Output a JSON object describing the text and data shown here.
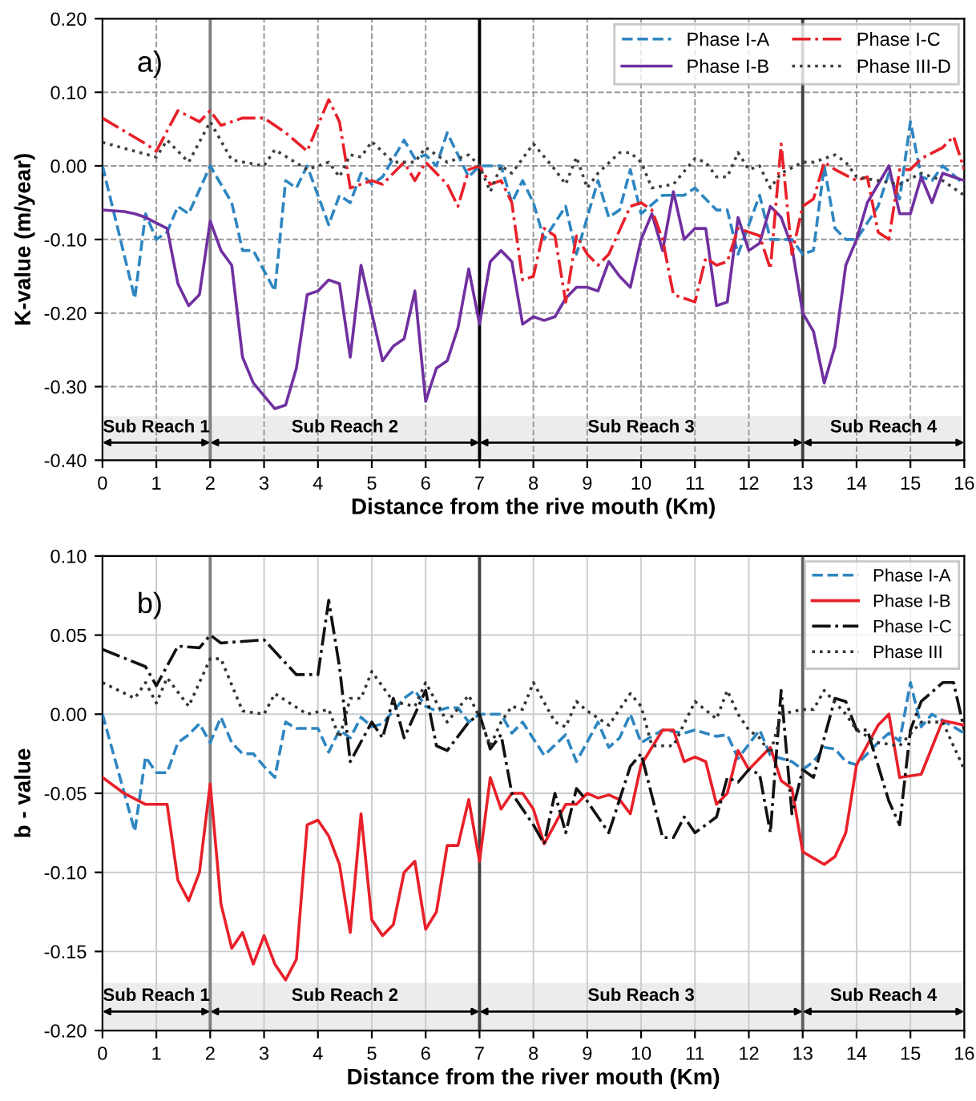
{
  "chart_data": [
    {
      "type": "line",
      "xlabel": "Distance from the rive mouth (Km)",
      "ylabel": "K-value (m/year)",
      "xlim": [
        0,
        16
      ],
      "xticks": [
        0,
        1,
        2,
        3,
        4,
        5,
        6,
        7,
        8,
        9,
        10,
        11,
        12,
        13,
        14,
        15,
        16
      ],
      "ylim": [
        -0.4,
        0.2
      ],
      "yticks": [
        {
          "value": -0.4,
          "label": "-0.40"
        },
        {
          "value": -0.3,
          "label": "-0.30"
        },
        {
          "value": -0.2,
          "label": "-0.20"
        },
        {
          "value": -0.1,
          "label": "-0.10"
        },
        {
          "value": 0,
          "label": "0.00"
        },
        {
          "value": 0.1,
          "label": "0.10"
        },
        {
          "value": 0.2,
          "label": "0.20"
        }
      ],
      "grid": true,
      "legend": "top right",
      "ref_lines": [
        {
          "axis": "x",
          "value": 2,
          "color": "#808080"
        },
        {
          "axis": "x",
          "value": 7,
          "color": "#000000"
        },
        {
          "axis": "x",
          "value": 13,
          "color": "#404040"
        }
      ],
      "annotations": [
        "a)"
      ],
      "bands": [
        {
          "axis": "x",
          "from": 0,
          "to": 2,
          "label": "Sub Reach 1",
          "color": "#ececec"
        },
        {
          "axis": "x",
          "from": 2,
          "to": 7,
          "label": "Sub Reach 2",
          "color": "#ececec"
        },
        {
          "axis": "x",
          "from": 7,
          "to": 13,
          "label": "Sub Reach 3",
          "color": "#ececec"
        },
        {
          "axis": "x",
          "from": 13,
          "to": 16,
          "label": "Sub Reach 4",
          "color": "#ececec"
        }
      ],
      "series": [
        {
          "name": "Phase I-A",
          "color": "#2e86c1",
          "line_style": "dashed",
          "x": [
            0,
            0.6,
            0.8,
            1,
            1.2,
            1.4,
            1.6,
            2,
            2.4,
            2.6,
            2.8,
            3.2,
            3.4,
            3.6,
            3.8,
            4.2,
            4.4,
            4.6,
            4.8,
            5,
            5.2,
            5.6,
            5.8,
            6,
            6.2,
            6.4,
            6.8,
            7,
            7.4,
            7.6,
            7.8,
            8,
            8.2,
            8.6,
            8.8,
            9.2,
            9.4,
            9.6,
            9.8,
            10,
            10.4,
            10.8,
            11,
            11.4,
            11.6,
            11.8,
            12.2,
            12.4,
            12.8,
            13,
            13.2,
            13.4,
            13.6,
            13.8,
            14,
            14.4,
            14.6,
            14.8,
            15,
            15.2,
            15.4,
            15.6,
            16
          ],
          "values": [
            0,
            -0.18,
            -0.065,
            -0.1,
            -0.09,
            -0.055,
            -0.065,
            0,
            -0.05,
            -0.115,
            -0.115,
            -0.17,
            -0.02,
            -0.03,
            0,
            -0.08,
            -0.04,
            -0.05,
            -0.01,
            -0.025,
            -0.015,
            0.035,
            0.01,
            0.015,
            0,
            0.045,
            -0.015,
            0,
            0,
            -0.05,
            -0.02,
            -0.05,
            -0.1,
            -0.055,
            -0.12,
            -0.02,
            -0.07,
            -0.06,
            -0.005,
            -0.065,
            -0.04,
            -0.04,
            -0.03,
            -0.06,
            -0.06,
            -0.12,
            -0.04,
            -0.1,
            -0.1,
            -0.12,
            -0.115,
            0,
            -0.085,
            -0.1,
            -0.1,
            -0.055,
            -0.01,
            -0.045,
            0.06,
            -0.015,
            -0.02,
            0,
            -0.025
          ]
        },
        {
          "name": "Phase I-B",
          "color": "#7030a0",
          "line_style": "solid",
          "x": [
            0,
            0.4,
            0.6,
            0.8,
            1.2,
            1.4,
            1.6,
            1.8,
            2,
            2.2,
            2.4,
            2.6,
            2.8,
            3.2,
            3.4,
            3.6,
            3.8,
            4,
            4.2,
            4.4,
            4.6,
            4.8,
            5,
            5.2,
            5.4,
            5.6,
            5.8,
            6,
            6.2,
            6.4,
            6.6,
            6.8,
            7,
            7.2,
            7.4,
            7.6,
            7.8,
            8,
            8.2,
            8.4,
            8.6,
            8.8,
            9,
            9.2,
            9.4,
            9.6,
            9.8,
            10,
            10.2,
            10.4,
            10.6,
            10.8,
            11,
            11.2,
            11.4,
            11.6,
            11.8,
            12,
            12.2,
            12.4,
            12.6,
            12.8,
            13,
            13.2,
            13.4,
            13.6,
            13.8,
            14,
            14.2,
            14.4,
            14.6,
            14.8,
            15,
            15.2,
            15.4,
            15.6,
            16
          ],
          "values": [
            -0.06,
            -0.062,
            -0.065,
            -0.07,
            -0.085,
            -0.16,
            -0.19,
            -0.175,
            -0.075,
            -0.115,
            -0.135,
            -0.26,
            -0.295,
            -0.33,
            -0.325,
            -0.275,
            -0.175,
            -0.17,
            -0.155,
            -0.16,
            -0.26,
            -0.135,
            -0.2,
            -0.265,
            -0.245,
            -0.235,
            -0.17,
            -0.32,
            -0.275,
            -0.265,
            -0.22,
            -0.14,
            -0.215,
            -0.13,
            -0.115,
            -0.13,
            -0.215,
            -0.205,
            -0.21,
            -0.205,
            -0.18,
            -0.165,
            -0.165,
            -0.17,
            -0.13,
            -0.15,
            -0.165,
            -0.1,
            -0.065,
            -0.115,
            -0.035,
            -0.1,
            -0.085,
            -0.085,
            -0.19,
            -0.185,
            -0.07,
            -0.115,
            -0.105,
            -0.055,
            -0.07,
            -0.11,
            -0.2,
            -0.225,
            -0.295,
            -0.245,
            -0.135,
            -0.1,
            -0.05,
            -0.025,
            0,
            -0.065,
            -0.065,
            -0.015,
            -0.05,
            -0.01,
            -0.02
          ]
        },
        {
          "name": "Phase I-C",
          "color": "#e8202a",
          "line_style": "dashdot",
          "x": [
            0,
            0.8,
            1,
            1.4,
            1.8,
            2,
            2.2,
            2.6,
            3,
            3.4,
            3.8,
            4.2,
            4.4,
            4.6,
            5,
            5.2,
            5.6,
            5.8,
            6,
            6.2,
            6.4,
            6.6,
            6.8,
            7,
            7.2,
            7.4,
            7.6,
            7.8,
            8,
            8.2,
            8.4,
            8.6,
            8.8,
            9,
            9.2,
            9.4,
            9.8,
            10,
            10.2,
            10.4,
            10.6,
            10.8,
            11,
            11.2,
            11.4,
            11.6,
            11.8,
            12,
            12.2,
            12.4,
            12.6,
            12.8,
            13,
            13.2,
            13.4,
            13.6,
            14,
            14.2,
            14.4,
            14.6,
            14.8,
            15,
            15.2,
            15.6,
            15.8,
            16
          ],
          "values": [
            0.065,
            0.03,
            0.02,
            0.075,
            0.06,
            0.075,
            0.055,
            0.065,
            0.065,
            0.045,
            0.02,
            0.09,
            0.06,
            -0.03,
            -0.02,
            -0.025,
            0.005,
            -0.02,
            0.005,
            -0.01,
            -0.025,
            -0.055,
            -0.005,
            0,
            -0.025,
            -0.02,
            -0.05,
            -0.155,
            -0.15,
            -0.085,
            -0.095,
            -0.185,
            -0.095,
            -0.12,
            -0.135,
            -0.12,
            -0.055,
            -0.05,
            -0.06,
            -0.1,
            -0.175,
            -0.18,
            -0.185,
            -0.125,
            -0.135,
            -0.13,
            -0.085,
            -0.09,
            -0.095,
            -0.14,
            0.03,
            -0.12,
            -0.055,
            -0.045,
            0.005,
            -0.005,
            -0.02,
            -0.015,
            -0.09,
            -0.1,
            -0.005,
            -0.005,
            0.01,
            0.025,
            0.04,
            -0.005
          ]
        },
        {
          "name": "Phase III-D",
          "color": "#404040",
          "line_style": "dotted",
          "x": [
            0,
            0.6,
            1,
            1.2,
            1.6,
            2,
            2.4,
            3,
            3.2,
            3.8,
            4.2,
            4.4,
            4.6,
            4.8,
            5,
            5.4,
            5.8,
            6,
            6.4,
            6.8,
            7,
            7.2,
            7.4,
            7.6,
            8,
            8.4,
            8.6,
            8.8,
            9,
            9.2,
            9.6,
            9.8,
            10,
            10.2,
            10.6,
            11,
            11.2,
            11.4,
            11.6,
            11.8,
            12,
            12.2,
            12.4,
            12.6,
            13,
            13.2,
            13.6,
            13.8,
            14,
            14.4,
            14.8,
            15.2,
            15.6,
            16
          ],
          "values": [
            0.032,
            0.02,
            0.012,
            0.035,
            0.005,
            0.06,
            0.008,
            0,
            0.022,
            -0.005,
            0.005,
            -0.015,
            0.015,
            0.012,
            0.033,
            0.005,
            0.005,
            0.025,
            0.005,
            0.015,
            0,
            -0.035,
            0,
            -0.01,
            0.03,
            -0.005,
            -0.025,
            0.012,
            -0.03,
            -0.01,
            0.018,
            0.018,
            0.005,
            -0.03,
            -0.025,
            0.01,
            0.005,
            -0.015,
            -0.015,
            0.018,
            -0.005,
            0,
            -0.03,
            -0.01,
            0.005,
            0.005,
            0.015,
            0.005,
            -0.015,
            -0.02,
            -0.025,
            -0.01,
            -0.02,
            -0.04
          ]
        }
      ]
    },
    {
      "type": "line",
      "xlabel": "Distance from the river mouth (Km)",
      "ylabel": "b - value",
      "xlim": [
        0,
        16
      ],
      "xticks": [
        0,
        1,
        2,
        3,
        4,
        5,
        6,
        7,
        8,
        9,
        10,
        11,
        12,
        13,
        14,
        15,
        16
      ],
      "ylim": [
        -0.2,
        0.1
      ],
      "yticks": [
        {
          "value": -0.2,
          "label": "-0.20"
        },
        {
          "value": -0.15,
          "label": "-0.15"
        },
        {
          "value": -0.1,
          "label": "-0.10"
        },
        {
          "value": -0.05,
          "label": "-0.05"
        },
        {
          "value": 0,
          "label": "0.00"
        },
        {
          "value": 0.05,
          "label": "0.05"
        },
        {
          "value": 0.1,
          "label": "0.10"
        }
      ],
      "grid": true,
      "legend": "top right",
      "ref_lines": [
        {
          "axis": "x",
          "value": 2,
          "color": "#808080"
        },
        {
          "axis": "x",
          "value": 7,
          "color": "#404040"
        },
        {
          "axis": "x",
          "value": 13,
          "color": "#606060"
        }
      ],
      "annotations": [
        "b)"
      ],
      "bands": [
        {
          "axis": "x",
          "from": 0,
          "to": 2,
          "label": "Sub Reach 1",
          "color": "#ececec"
        },
        {
          "axis": "x",
          "from": 2,
          "to": 7,
          "label": "Sub Reach 2",
          "color": "#ececec"
        },
        {
          "axis": "x",
          "from": 7,
          "to": 13,
          "label": "Sub Reach 3",
          "color": "#ececec"
        },
        {
          "axis": "x",
          "from": 13,
          "to": 16,
          "label": "Sub Reach 4",
          "color": "#ececec"
        }
      ],
      "series": [
        {
          "name": "Phase I-A",
          "color": "#2e86c1",
          "line_style": "dashed",
          "x": [
            0,
            0.6,
            0.8,
            1,
            1.2,
            1.4,
            1.6,
            1.8,
            2,
            2.2,
            2.4,
            2.6,
            2.8,
            3,
            3.2,
            3.4,
            3.6,
            4,
            4.2,
            4.4,
            4.6,
            4.8,
            5,
            5.2,
            5.6,
            5.8,
            6,
            6.2,
            6.4,
            6.6,
            6.8,
            7,
            7.4,
            7.6,
            7.8,
            8.2,
            8.6,
            8.8,
            9.2,
            9.4,
            9.6,
            9.8,
            10,
            10.4,
            10.8,
            11,
            11.4,
            11.6,
            11.8,
            12.2,
            12.4,
            12.8,
            13,
            13.2,
            13.4,
            13.6,
            13.8,
            14,
            14.2,
            14.4,
            14.6,
            14.8,
            15,
            15.2,
            15.4,
            15.6,
            16
          ],
          "values": [
            0,
            -0.074,
            -0.027,
            -0.037,
            -0.037,
            -0.018,
            -0.013,
            -0.006,
            -0.018,
            -0.002,
            -0.018,
            -0.025,
            -0.025,
            -0.033,
            -0.04,
            -0.005,
            -0.009,
            -0.009,
            -0.024,
            -0.01,
            -0.015,
            -0.002,
            -0.008,
            -0.006,
            0.01,
            0.015,
            0.005,
            0.002,
            0.004,
            0.004,
            -0.005,
            0,
            0,
            -0.012,
            -0.005,
            -0.026,
            -0.013,
            -0.03,
            -0.005,
            -0.021,
            -0.015,
            0,
            -0.018,
            -0.01,
            -0.012,
            -0.01,
            -0.014,
            -0.013,
            -0.028,
            -0.01,
            -0.026,
            -0.03,
            -0.035,
            -0.03,
            -0.021,
            -0.022,
            -0.03,
            -0.032,
            -0.025,
            -0.018,
            -0.012,
            -0.017,
            0.02,
            -0.008,
            0,
            -0.004,
            -0.012
          ]
        },
        {
          "name": "Phase I-B",
          "color": "#e8202a",
          "line_style": "solid",
          "x": [
            0,
            0.4,
            0.8,
            1.2,
            1.4,
            1.6,
            1.8,
            2,
            2.2,
            2.4,
            2.6,
            2.8,
            3,
            3.2,
            3.4,
            3.6,
            3.8,
            4,
            4.2,
            4.4,
            4.6,
            4.8,
            5,
            5.2,
            5.4,
            5.6,
            5.8,
            6,
            6.2,
            6.4,
            6.6,
            6.8,
            7,
            7.2,
            7.4,
            7.6,
            7.8,
            8,
            8.2,
            8.6,
            8.8,
            9,
            9.2,
            9.4,
            9.6,
            9.8,
            10,
            10.4,
            10.6,
            10.8,
            11,
            11.2,
            11.4,
            11.6,
            11.8,
            12,
            12.4,
            12.6,
            12.8,
            13,
            13.4,
            13.6,
            13.8,
            14,
            14.4,
            14.6,
            14.8,
            15.2,
            15.6,
            16
          ],
          "values": [
            -0.04,
            -0.05,
            -0.057,
            -0.057,
            -0.105,
            -0.118,
            -0.1,
            -0.044,
            -0.12,
            -0.148,
            -0.138,
            -0.158,
            -0.14,
            -0.158,
            -0.168,
            -0.155,
            -0.07,
            -0.067,
            -0.077,
            -0.095,
            -0.138,
            -0.063,
            -0.13,
            -0.14,
            -0.133,
            -0.1,
            -0.093,
            -0.136,
            -0.125,
            -0.083,
            -0.083,
            -0.054,
            -0.093,
            -0.04,
            -0.06,
            -0.05,
            -0.05,
            -0.06,
            -0.082,
            -0.057,
            -0.057,
            -0.05,
            -0.053,
            -0.051,
            -0.054,
            -0.063,
            -0.032,
            -0.01,
            -0.01,
            -0.03,
            -0.027,
            -0.03,
            -0.057,
            -0.05,
            -0.023,
            -0.035,
            -0.021,
            -0.042,
            -0.047,
            -0.087,
            -0.095,
            -0.09,
            -0.075,
            -0.032,
            -0.007,
            0,
            -0.04,
            -0.038,
            -0.004,
            -0.007
          ]
        },
        {
          "name": "Phase I-C",
          "color": "#111111",
          "line_style": "dashdot",
          "x": [
            0,
            0.8,
            1,
            1.4,
            1.8,
            2,
            2.2,
            3,
            3.6,
            4,
            4.2,
            4.4,
            4.6,
            5,
            5.2,
            5.4,
            5.6,
            6,
            6.2,
            6.4,
            6.8,
            7,
            7.2,
            7.4,
            7.6,
            8,
            8.2,
            8.4,
            8.6,
            8.8,
            9,
            9.4,
            9.8,
            10,
            10.4,
            10.6,
            10.8,
            11,
            11.4,
            11.6,
            11.8,
            12,
            12.2,
            12.4,
            12.6,
            12.8,
            13,
            13.2,
            13.6,
            13.8,
            14,
            14.2,
            14.6,
            14.8,
            15,
            15.2,
            15.6,
            15.8,
            16
          ],
          "values": [
            0.041,
            0.03,
            0.018,
            0.043,
            0.042,
            0.05,
            0.045,
            0.047,
            0.025,
            0.025,
            0.072,
            0.03,
            -0.03,
            -0.005,
            -0.015,
            0.01,
            -0.015,
            0.015,
            -0.02,
            -0.023,
            -0.005,
            0,
            -0.022,
            -0.013,
            -0.05,
            -0.07,
            -0.082,
            -0.05,
            -0.075,
            -0.047,
            -0.055,
            -0.075,
            -0.033,
            -0.025,
            -0.078,
            -0.078,
            -0.065,
            -0.075,
            -0.065,
            -0.04,
            -0.043,
            -0.035,
            -0.038,
            -0.075,
            0.015,
            -0.063,
            -0.035,
            -0.04,
            0.01,
            0.008,
            -0.01,
            -0.01,
            -0.055,
            -0.07,
            -0.01,
            0.008,
            0.02,
            0.02,
            -0.01
          ]
        },
        {
          "name": "Phase III",
          "color": "#333333",
          "line_style": "dotted",
          "x": [
            0,
            0.6,
            0.8,
            1,
            1.2,
            1.6,
            2,
            2.2,
            2.6,
            3,
            3.2,
            3.8,
            4.2,
            4.4,
            4.6,
            4.8,
            5,
            5.4,
            5.8,
            6,
            6.4,
            6.8,
            7,
            7.2,
            7.4,
            7.6,
            7.8,
            8,
            8.4,
            8.6,
            8.8,
            9,
            9.4,
            9.8,
            10,
            10.2,
            10.6,
            11,
            11.4,
            11.6,
            11.8,
            12,
            12.2,
            12.4,
            12.6,
            13,
            13.2,
            13.4,
            13.8,
            14,
            14.4,
            14.8,
            15.2,
            15.6,
            16
          ],
          "values": [
            0.02,
            0.01,
            0.02,
            0.007,
            0.023,
            0.005,
            0.035,
            0.035,
            0.002,
            0,
            0.013,
            0,
            0.003,
            -0.015,
            0.01,
            0.01,
            0.027,
            0.008,
            0.005,
            0.02,
            -0.005,
            0.012,
            -0.002,
            -0.02,
            -0.005,
            0.005,
            0.003,
            0.02,
            -0.005,
            -0.008,
            0.008,
            0.002,
            -0.007,
            0.013,
            0.005,
            -0.02,
            -0.02,
            0.008,
            -0.003,
            0.015,
            0,
            -0.01,
            -0.015,
            -0.025,
            0,
            0.003,
            0.003,
            0.015,
            0,
            -0.01,
            -0.018,
            -0.02,
            -0.005,
            -0.005,
            -0.035
          ]
        }
      ]
    }
  ]
}
